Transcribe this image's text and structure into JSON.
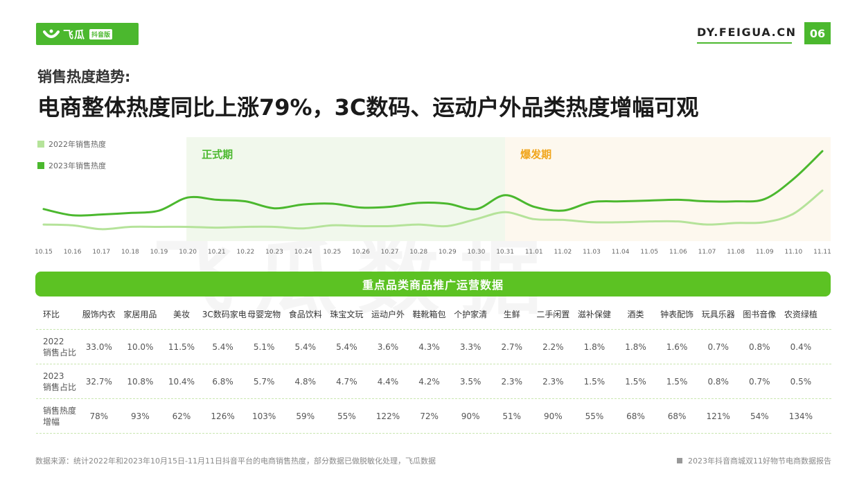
{
  "header": {
    "logo_text": "飞瓜",
    "logo_tag": "抖音版",
    "site": "DY.FEIGUA.CN",
    "page_number": "06",
    "brand_color": "#4bb82e"
  },
  "subtitle": "销售热度趋势:",
  "title": "电商整体热度同比上涨79%，3C数码、运动户外品类热度增幅可观",
  "watermark": "飞瓜数据",
  "chart_data": {
    "type": "line",
    "x": [
      "10.15",
      "10.16",
      "10.17",
      "10.18",
      "10.19",
      "10.20",
      "10.21",
      "10.22",
      "10.23",
      "10.24",
      "10.25",
      "10.26",
      "10.27",
      "10.28",
      "10.29",
      "10.30",
      "10.31",
      "11.01",
      "11.02",
      "11.03",
      "11.04",
      "11.05",
      "11.06",
      "11.07",
      "11.08",
      "11.09",
      "11.10",
      "11.11"
    ],
    "series": [
      {
        "name": "2022年销售热度",
        "color": "#b5e39a",
        "values": [
          25,
          24,
          19,
          22,
          22,
          22,
          21,
          22,
          22,
          20,
          24,
          23,
          23,
          25,
          23,
          32,
          41,
          32,
          31,
          28,
          28,
          29,
          29,
          25,
          27,
          28,
          39,
          69
        ]
      },
      {
        "name": "2023年销售热度",
        "color": "#4bb82e",
        "values": [
          45,
          37,
          38,
          40,
          43,
          60,
          57,
          55,
          46,
          51,
          52,
          47,
          48,
          53,
          52,
          45,
          63,
          48,
          43,
          54,
          55,
          56,
          57,
          55,
          55,
          58,
          84,
          120
        ]
      }
    ],
    "phases": [
      {
        "label": "正式期",
        "start": "10.20",
        "end": "10.31",
        "color": "#f1f8ec",
        "label_color": "#4bb82e"
      },
      {
        "label": "爆发期",
        "start": "10.31",
        "end": "11.11",
        "color": "#fdf8ee",
        "label_color": "#f0a51c"
      }
    ],
    "ylim": [
      0,
      130
    ],
    "grid": false,
    "legend": "top-left"
  },
  "table": {
    "title": "重点品类商品推广运营数据",
    "header_label": "环比",
    "columns": [
      "服饰内衣",
      "家居用品",
      "美妆",
      "3C数码家电",
      "母婴宠物",
      "食品饮料",
      "珠宝文玩",
      "运动户外",
      "鞋靴箱包",
      "个护家清",
      "生鲜",
      "二手闲置",
      "滋补保健",
      "酒类",
      "钟表配饰",
      "玩具乐器",
      "图书音像",
      "农资绿植"
    ],
    "rows": [
      {
        "label": "2022\n销售占比",
        "values": [
          "33.0%",
          "10.0%",
          "11.5%",
          "5.4%",
          "5.1%",
          "5.4%",
          "5.4%",
          "3.6%",
          "4.3%",
          "3.3%",
          "2.7%",
          "2.2%",
          "1.8%",
          "1.8%",
          "1.6%",
          "0.7%",
          "0.8%",
          "0.4%"
        ]
      },
      {
        "label": "2023\n销售占比",
        "values": [
          "32.7%",
          "10.8%",
          "10.4%",
          "6.8%",
          "5.7%",
          "4.8%",
          "4.7%",
          "4.4%",
          "4.2%",
          "3.5%",
          "2.3%",
          "2.3%",
          "1.5%",
          "1.5%",
          "1.5%",
          "0.8%",
          "0.7%",
          "0.5%"
        ]
      },
      {
        "label": "销售热度\n增幅",
        "values": [
          "78%",
          "93%",
          "62%",
          "126%",
          "103%",
          "59%",
          "55%",
          "122%",
          "72%",
          "90%",
          "51%",
          "90%",
          "55%",
          "68%",
          "68%",
          "121%",
          "54%",
          "134%"
        ]
      }
    ]
  },
  "footer": {
    "source": "数据来源：统计2022年和2023年10月15日-11月11日抖音平台的电商销售热度，部分数据已做脱敏化处理，飞瓜数据",
    "report": "2023年抖音商城双11好物节电商数据报告"
  }
}
